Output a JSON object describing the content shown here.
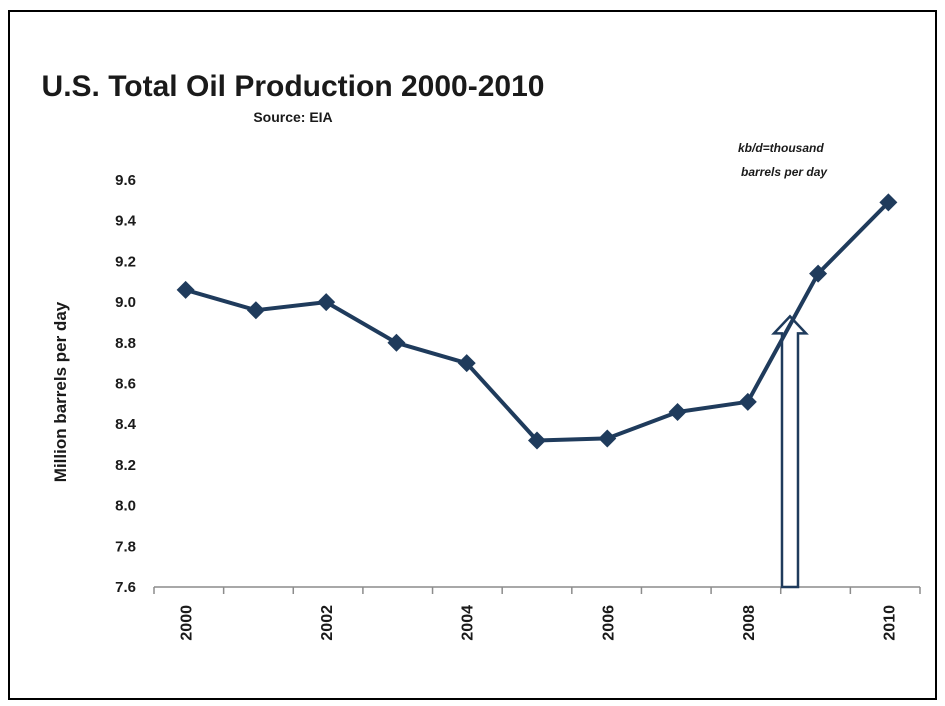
{
  "chart_data": {
    "type": "line",
    "title": "U.S. Total Oil Production 2000-2010",
    "subtitle": "Source: EIA",
    "xlabel": "",
    "ylabel": "Million barrels per day",
    "x": [
      2000,
      2001,
      2002,
      2003,
      2004,
      2005,
      2006,
      2007,
      2008,
      2009,
      2010
    ],
    "x_tick_labels": [
      "2000",
      "2002",
      "2004",
      "2006",
      "2008",
      "2010"
    ],
    "series": [
      {
        "values": [
          9.06,
          8.96,
          9.0,
          8.8,
          8.7,
          8.32,
          8.33,
          8.46,
          8.51,
          9.14,
          9.49
        ],
        "color": "#1f3b5c",
        "marker": "diamond"
      }
    ],
    "ylim": [
      7.6,
      9.6
    ],
    "y_ticks": [
      "7.6",
      "7.8",
      "8.0",
      "8.2",
      "8.4",
      "8.6",
      "8.8",
      "9.0",
      "9.2",
      "9.4",
      "9.6"
    ],
    "grid": false,
    "annotations": {
      "note_line1": "kb/d=thousand",
      "note_line2": "barrels per day",
      "arrow_x": 2008.6,
      "arrow_direction": "up"
    }
  }
}
